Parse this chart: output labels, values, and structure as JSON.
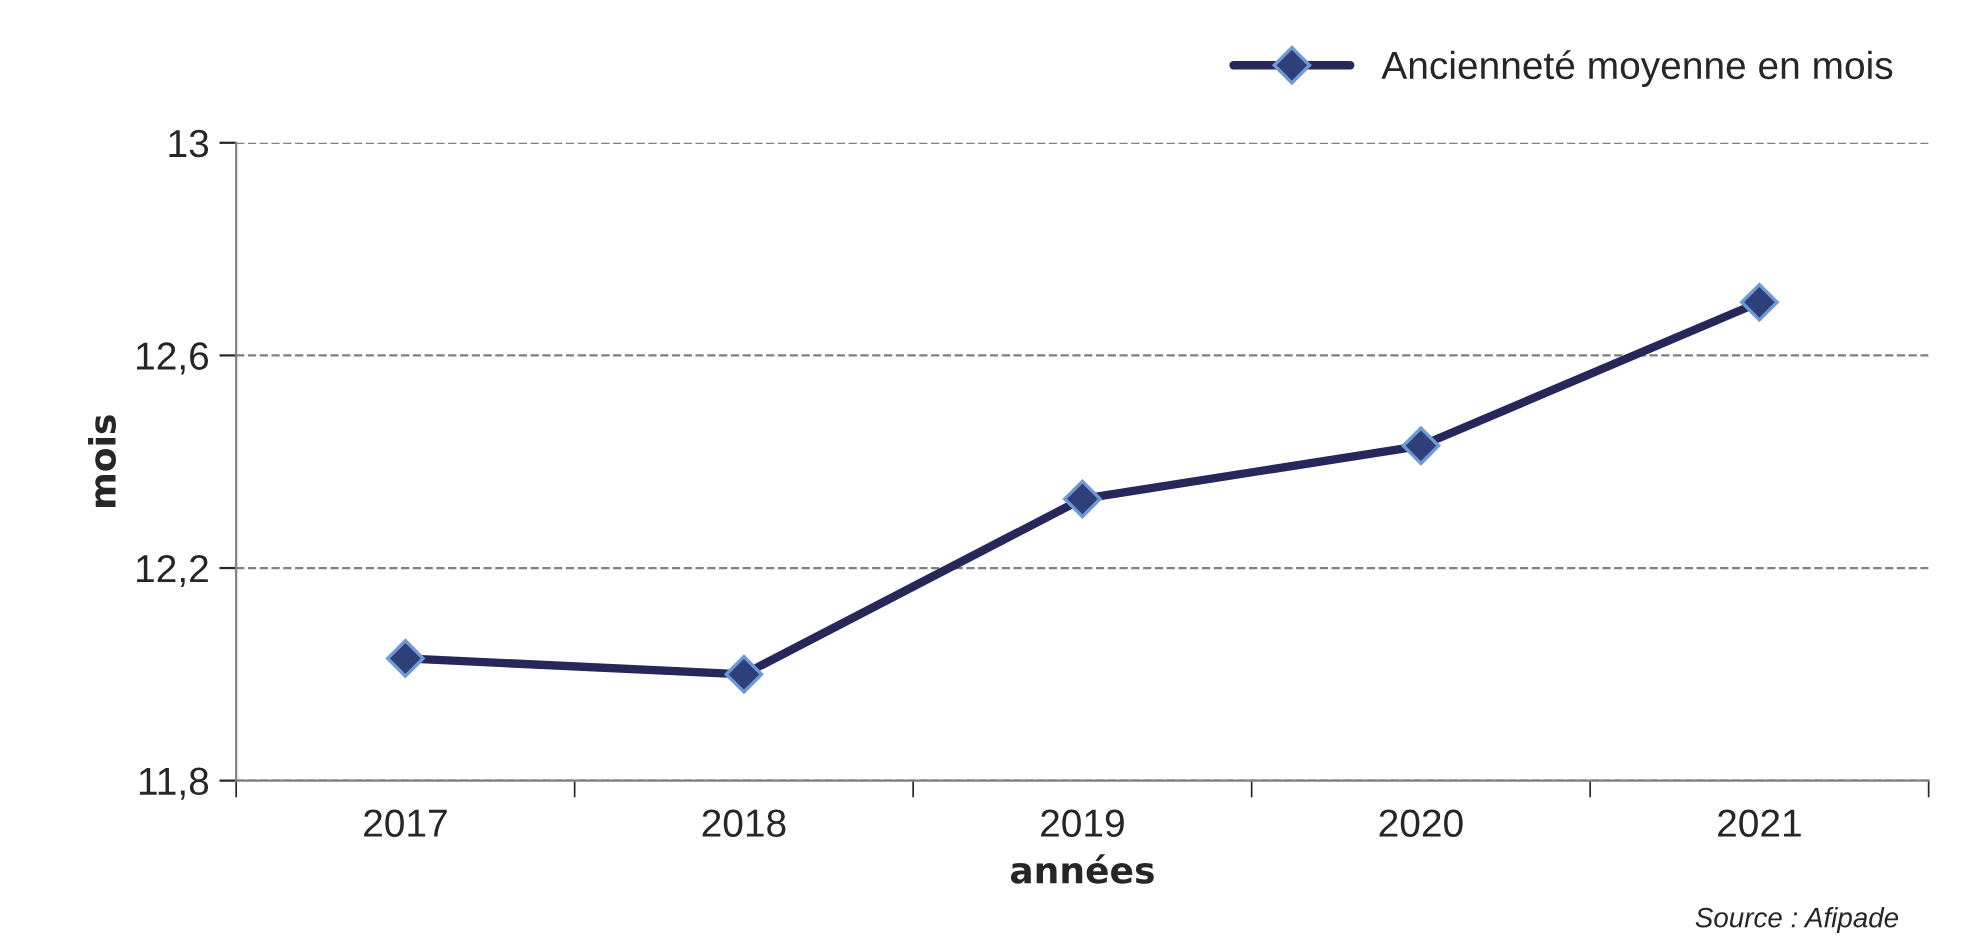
{
  "chart_data": {
    "type": "line",
    "xlabel": "années",
    "ylabel": "mois",
    "categories": [
      "2017",
      "2018",
      "2019",
      "2020",
      "2021"
    ],
    "series": [
      {
        "name": "Ancienneté moyenne en mois",
        "color": "#27275a",
        "values": [
          12.03,
          12.0,
          12.33,
          12.43,
          12.7
        ]
      }
    ],
    "ylim": [
      11.8,
      13
    ],
    "yticks": [
      {
        "value": 11.8,
        "label": "11,8"
      },
      {
        "value": 12.2,
        "label": "12,2"
      },
      {
        "value": 12.6,
        "label": "12,6"
      },
      13
    ],
    "grid": "y",
    "legend": "top right",
    "marker": "diamond",
    "line_style": "solid",
    "annotations": [
      "Source : Afipade"
    ]
  }
}
